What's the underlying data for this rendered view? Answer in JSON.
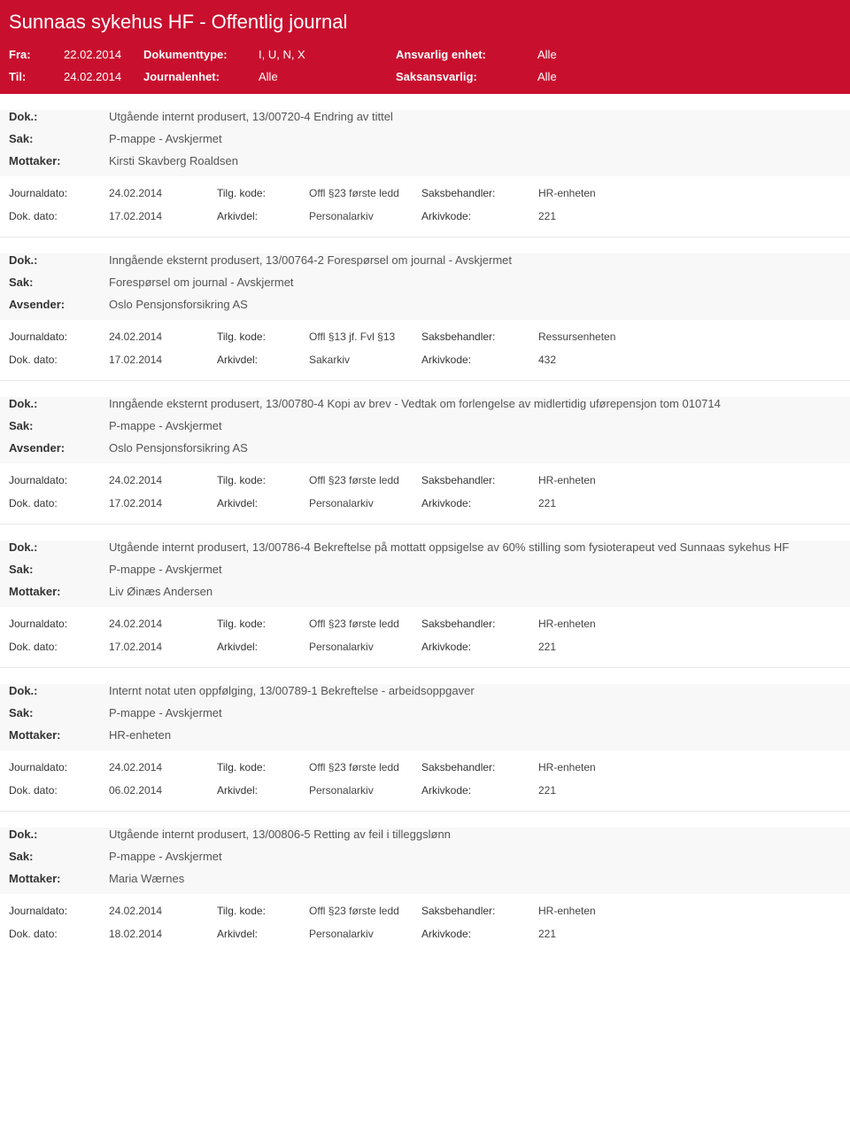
{
  "header": {
    "title": "Sunnaas sykehus HF - Offentlig journal",
    "fra_label": "Fra:",
    "fra_value": "22.02.2014",
    "til_label": "Til:",
    "til_value": "24.02.2014",
    "doktype_label": "Dokumenttype:",
    "doktype_value": "I, U, N, X",
    "journalenhet_label": "Journalenhet:",
    "journalenhet_value": "Alle",
    "ansvarlig_label": "Ansvarlig enhet:",
    "ansvarlig_value": "Alle",
    "saksansvarlig_label": "Saksansvarlig:",
    "saksansvarlig_value": "Alle"
  },
  "labels": {
    "dok": "Dok.:",
    "sak": "Sak:",
    "mottaker": "Mottaker:",
    "avsender": "Avsender:",
    "journaldato": "Journaldato:",
    "dokdato": "Dok. dato:",
    "tilgkode": "Tilg. kode:",
    "arkivdel": "Arkivdel:",
    "saksbehandler": "Saksbehandler:",
    "arkivkode": "Arkivkode:"
  },
  "entries": [
    {
      "dok": "Utgående internt produsert, 13/00720-4 Endring av tittel",
      "sak": "P-mappe - Avskjermet",
      "party_label": "Mottaker:",
      "party": "Kirsti Skavberg Roaldsen",
      "journaldato": "24.02.2014",
      "dokdato": "17.02.2014",
      "tilgkode": "Offl §23 første ledd",
      "arkivdel": "Personalarkiv",
      "saksbehandler": "HR-enheten",
      "arkivkode": "221"
    },
    {
      "dok": "Inngående eksternt produsert, 13/00764-2 Forespørsel om journal - Avskjermet",
      "sak": "Forespørsel om journal - Avskjermet",
      "party_label": "Avsender:",
      "party": "Oslo Pensjonsforsikring AS",
      "journaldato": "24.02.2014",
      "dokdato": "17.02.2014",
      "tilgkode": "Offl §13 jf. Fvl §13",
      "arkivdel": "Sakarkiv",
      "saksbehandler": "Ressursenheten",
      "arkivkode": "432"
    },
    {
      "dok": "Inngående eksternt produsert, 13/00780-4 Kopi av brev - Vedtak om forlengelse av midlertidig uførepensjon tom 010714",
      "sak": "P-mappe - Avskjermet",
      "party_label": "Avsender:",
      "party": "Oslo Pensjonsforsikring AS",
      "journaldato": "24.02.2014",
      "dokdato": "17.02.2014",
      "tilgkode": "Offl §23 første ledd",
      "arkivdel": "Personalarkiv",
      "saksbehandler": "HR-enheten",
      "arkivkode": "221"
    },
    {
      "dok": "Utgående internt produsert, 13/00786-4 Bekreftelse på mottatt oppsigelse av 60% stilling som fysioterapeut ved Sunnaas sykehus HF",
      "sak": "P-mappe - Avskjermet",
      "party_label": "Mottaker:",
      "party": "Liv Øinæs Andersen",
      "journaldato": "24.02.2014",
      "dokdato": "17.02.2014",
      "tilgkode": "Offl §23 første ledd",
      "arkivdel": "Personalarkiv",
      "saksbehandler": "HR-enheten",
      "arkivkode": "221"
    },
    {
      "dok": "Internt notat uten oppfølging, 13/00789-1 Bekreftelse - arbeidsoppgaver",
      "sak": "P-mappe - Avskjermet",
      "party_label": "Mottaker:",
      "party": "HR-enheten",
      "journaldato": "24.02.2014",
      "dokdato": "06.02.2014",
      "tilgkode": "Offl §23 første ledd",
      "arkivdel": "Personalarkiv",
      "saksbehandler": "HR-enheten",
      "arkivkode": "221"
    },
    {
      "dok": "Utgående internt produsert, 13/00806-5 Retting av feil i tilleggslønn",
      "sak": "P-mappe - Avskjermet",
      "party_label": "Mottaker:",
      "party": "Maria Wærnes",
      "journaldato": "24.02.2014",
      "dokdato": "18.02.2014",
      "tilgkode": "Offl §23 første ledd",
      "arkivdel": "Personalarkiv",
      "saksbehandler": "HR-enheten",
      "arkivkode": "221"
    }
  ]
}
